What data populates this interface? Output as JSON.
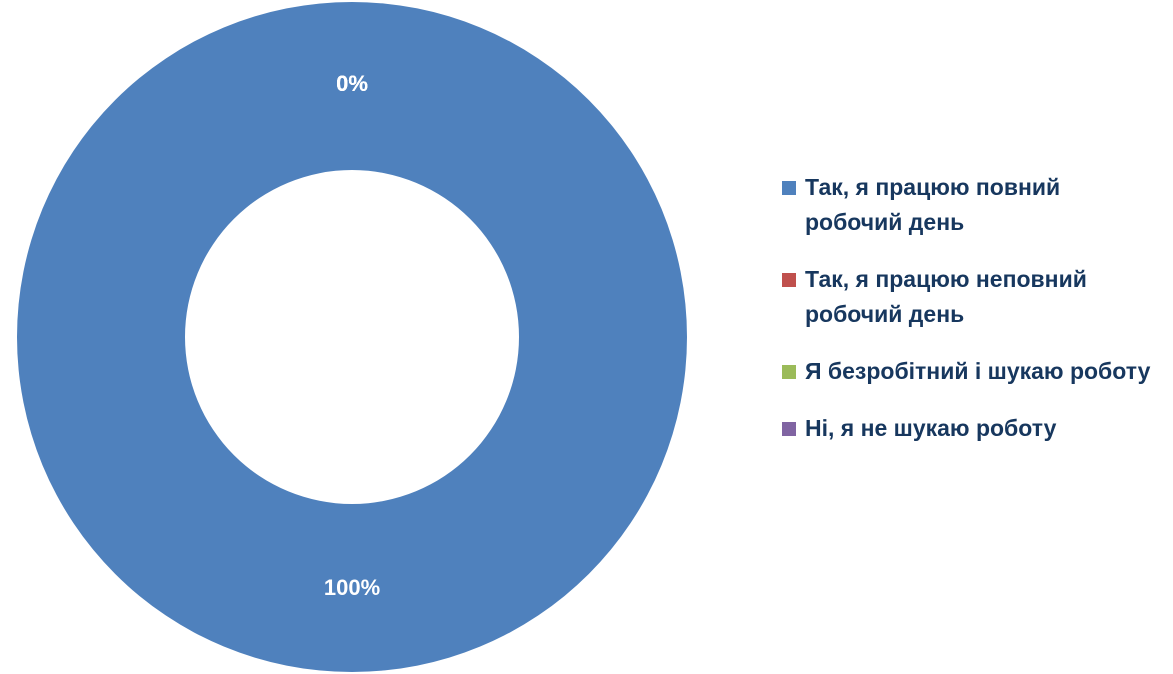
{
  "chart_data": {
    "type": "donut",
    "categories": [
      "Так, я працюю повний робочий день",
      "Так, я працюю неповний робочий день",
      "Я безробітний і шукаю роботу",
      "Ні, я не шукаю роботу"
    ],
    "values": [
      100,
      0,
      0,
      0
    ],
    "value_labels": [
      "100%",
      "0%",
      "0%",
      "0%"
    ],
    "colors": [
      "#4f81bd",
      "#c0504d",
      "#9bbb59",
      "#8064a2"
    ],
    "legend": "right"
  }
}
